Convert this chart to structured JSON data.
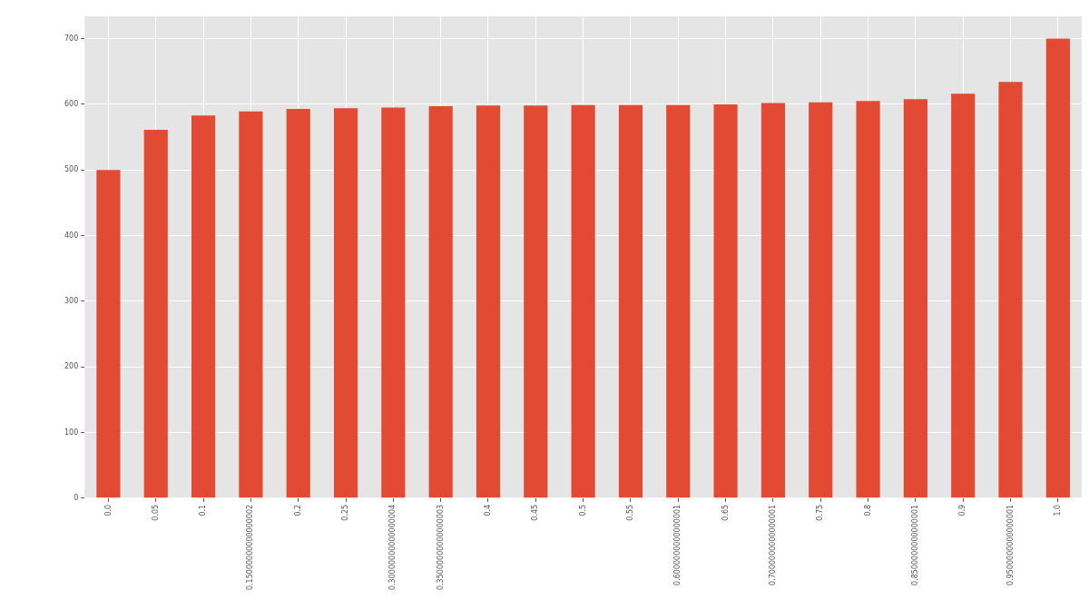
{
  "chart_data": {
    "type": "bar",
    "categories": [
      "0.0",
      "0.05",
      "0.1",
      "0.15000000000000002",
      "0.2",
      "0.25",
      "0.30000000000000004",
      "0.35000000000000003",
      "0.4",
      "0.45",
      "0.5",
      "0.55",
      "0.6000000000000001",
      "0.65",
      "0.7000000000000001",
      "0.75",
      "0.8",
      "0.8500000000000001",
      "0.9",
      "0.9500000000000001",
      "1.0"
    ],
    "values": [
      500,
      561,
      583,
      589,
      593,
      594,
      595,
      597,
      598,
      598,
      599,
      599,
      599,
      600,
      602,
      603,
      605,
      608,
      616,
      634,
      700
    ],
    "color": "#e24a33",
    "ylim": [
      0,
      734
    ],
    "yticks": [
      0,
      100,
      200,
      300,
      400,
      500,
      600,
      700
    ],
    "grid": true,
    "legend": false
  }
}
